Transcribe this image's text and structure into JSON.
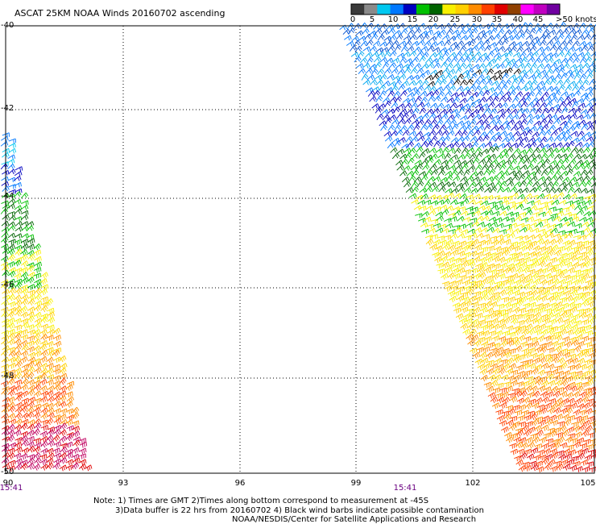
{
  "title": "ASCAT 25KM NOAA Winds 20160702 ascending",
  "legend": {
    "ticks": [
      "0",
      "5",
      "10",
      "15",
      "20",
      "25",
      "30",
      "35",
      "40",
      "45"
    ],
    "unit": ">50 knots",
    "colors": [
      "#3a3a3a",
      "#8a8a8a",
      "#00c8f0",
      "#0078ff",
      "#0000c0",
      "#00c000",
      "#006400",
      "#f8f000",
      "#ffd000",
      "#ff8c00",
      "#ff4000",
      "#e00000",
      "#904000",
      "#ff00ff",
      "#c000c0",
      "#7000a0"
    ]
  },
  "lat_labels": [
    "-40",
    "-42",
    "-44",
    "-46",
    "-48",
    "-50"
  ],
  "lon_labels": [
    "90",
    "93",
    "96",
    "99",
    "102",
    "105"
  ],
  "times": [
    "15:41",
    "15:41"
  ],
  "notes": {
    "line1": "Note: 1) Times are GMT 2)Times along bottom correspond to measurement at -45S",
    "line2": "3)Data buffer is 22 hrs from 20160702 4) Black wind barbs indicate possible contamination",
    "line3": "NOAA/NESDIS/Center for Satellite Applications and Research"
  }
}
